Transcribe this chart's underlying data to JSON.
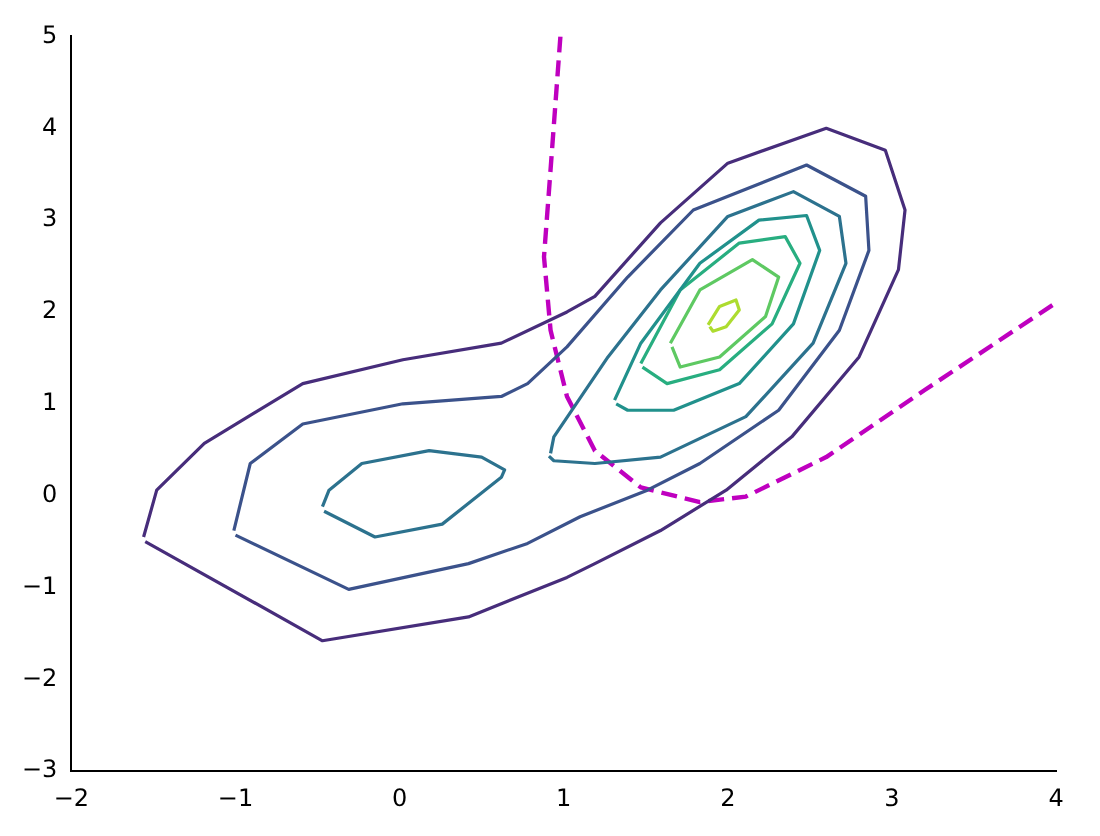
{
  "chart_data": {
    "type": "line",
    "marker": "none",
    "grid": false,
    "legend": false,
    "xlim": [
      -2,
      4
    ],
    "ylim": [
      -3,
      5
    ],
    "xticks": [
      {
        "value": -2,
        "label": "−2"
      },
      {
        "value": -1,
        "label": "−1"
      },
      0,
      1,
      2,
      3,
      4
    ],
    "yticks": [
      {
        "value": -3,
        "label": "−3"
      },
      {
        "value": -2,
        "label": "−2"
      },
      {
        "value": -1,
        "label": "−1"
      },
      0,
      1,
      2,
      3,
      4,
      5
    ],
    "series": [
      {
        "color": "#472d7b",
        "x": [
          -1.56,
          -1.48,
          -1.19,
          -0.59,
          0.02,
          0.62,
          1.02,
          1.19,
          1.59,
          2.0,
          2.6,
          2.96,
          3.08,
          3.04,
          2.8,
          2.39,
          1.99,
          1.59,
          1.19,
          1.02,
          0.42,
          -0.47,
          -1.55
        ],
        "values": [
          -0.45,
          0.06,
          0.57,
          1.22,
          1.48,
          1.66,
          2.0,
          2.17,
          2.97,
          3.62,
          4.0,
          3.76,
          3.11,
          2.46,
          1.51,
          0.64,
          0.06,
          -0.38,
          -0.74,
          -0.89,
          -1.32,
          -1.58,
          -0.5
        ]
      },
      {
        "color": "#3b528b",
        "x": [
          -1.01,
          -0.91,
          -0.59,
          0.02,
          0.62,
          0.78,
          1.02,
          1.39,
          1.79,
          2.48,
          2.84,
          2.86,
          2.68,
          2.31,
          1.83,
          1.51,
          1.1,
          0.78,
          0.42,
          -0.31,
          -1.0
        ],
        "values": [
          -0.38,
          0.35,
          0.78,
          1.0,
          1.08,
          1.22,
          1.62,
          2.38,
          3.11,
          3.6,
          3.26,
          2.67,
          1.8,
          0.93,
          0.35,
          0.06,
          -0.23,
          -0.52,
          -0.74,
          -1.02,
          -0.43
        ]
      },
      {
        "color": "#2c728e",
        "x": [
          -0.47,
          -0.43,
          -0.23,
          0.18,
          0.5,
          0.64,
          0.62,
          0.26,
          -0.15,
          -0.46
        ],
        "values": [
          -0.12,
          0.06,
          0.35,
          0.49,
          0.42,
          0.28,
          0.2,
          -0.31,
          -0.45,
          -0.17
        ]
      },
      {
        "color": "#2c728e",
        "x": [
          0.92,
          0.94,
          1.27,
          1.59,
          2.0,
          2.4,
          2.68,
          2.72,
          2.52,
          2.11,
          1.59,
          1.19,
          0.94,
          0.91
        ],
        "values": [
          0.46,
          0.64,
          1.51,
          2.24,
          3.04,
          3.31,
          3.04,
          2.53,
          1.66,
          0.86,
          0.42,
          0.35,
          0.38,
          0.43
        ]
      },
      {
        "color": "#21918c",
        "x": [
          1.31,
          1.47,
          1.83,
          2.19,
          2.48,
          2.56,
          2.4,
          2.07,
          1.67,
          1.39,
          1.32
        ],
        "values": [
          1.04,
          1.66,
          2.53,
          3.0,
          3.05,
          2.67,
          1.87,
          1.22,
          0.93,
          0.93,
          1.0
        ]
      },
      {
        "color": "#28ae80",
        "x": [
          1.47,
          1.71,
          2.07,
          2.35,
          2.44,
          2.27,
          1.95,
          1.63,
          1.48
        ],
        "values": [
          1.44,
          2.24,
          2.75,
          2.82,
          2.53,
          1.87,
          1.37,
          1.22,
          1.4
        ]
      },
      {
        "color": "#5ec962",
        "x": [
          1.65,
          1.83,
          2.15,
          2.31,
          2.23,
          1.95,
          1.71,
          1.66
        ],
        "values": [
          1.66,
          2.24,
          2.57,
          2.38,
          1.95,
          1.51,
          1.4,
          1.62
        ]
      },
      {
        "color": "#addc30",
        "x": [
          1.88,
          1.95,
          2.05,
          2.07,
          1.99,
          1.91,
          1.89
        ],
        "values": [
          1.86,
          2.06,
          2.13,
          2.02,
          1.84,
          1.79,
          1.84
        ]
      },
      {
        "color": "#bf00bf",
        "line_style": "dashed",
        "x": [
          0.98,
          0.92,
          0.88,
          0.92,
          1.02,
          1.19,
          1.47,
          1.83,
          2.11,
          2.6,
          3.2,
          4.0
        ],
        "values": [
          5.0,
          3.55,
          2.6,
          1.8,
          1.08,
          0.49,
          0.09,
          -0.07,
          -0.01,
          0.42,
          1.15,
          2.1
        ]
      }
    ]
  }
}
